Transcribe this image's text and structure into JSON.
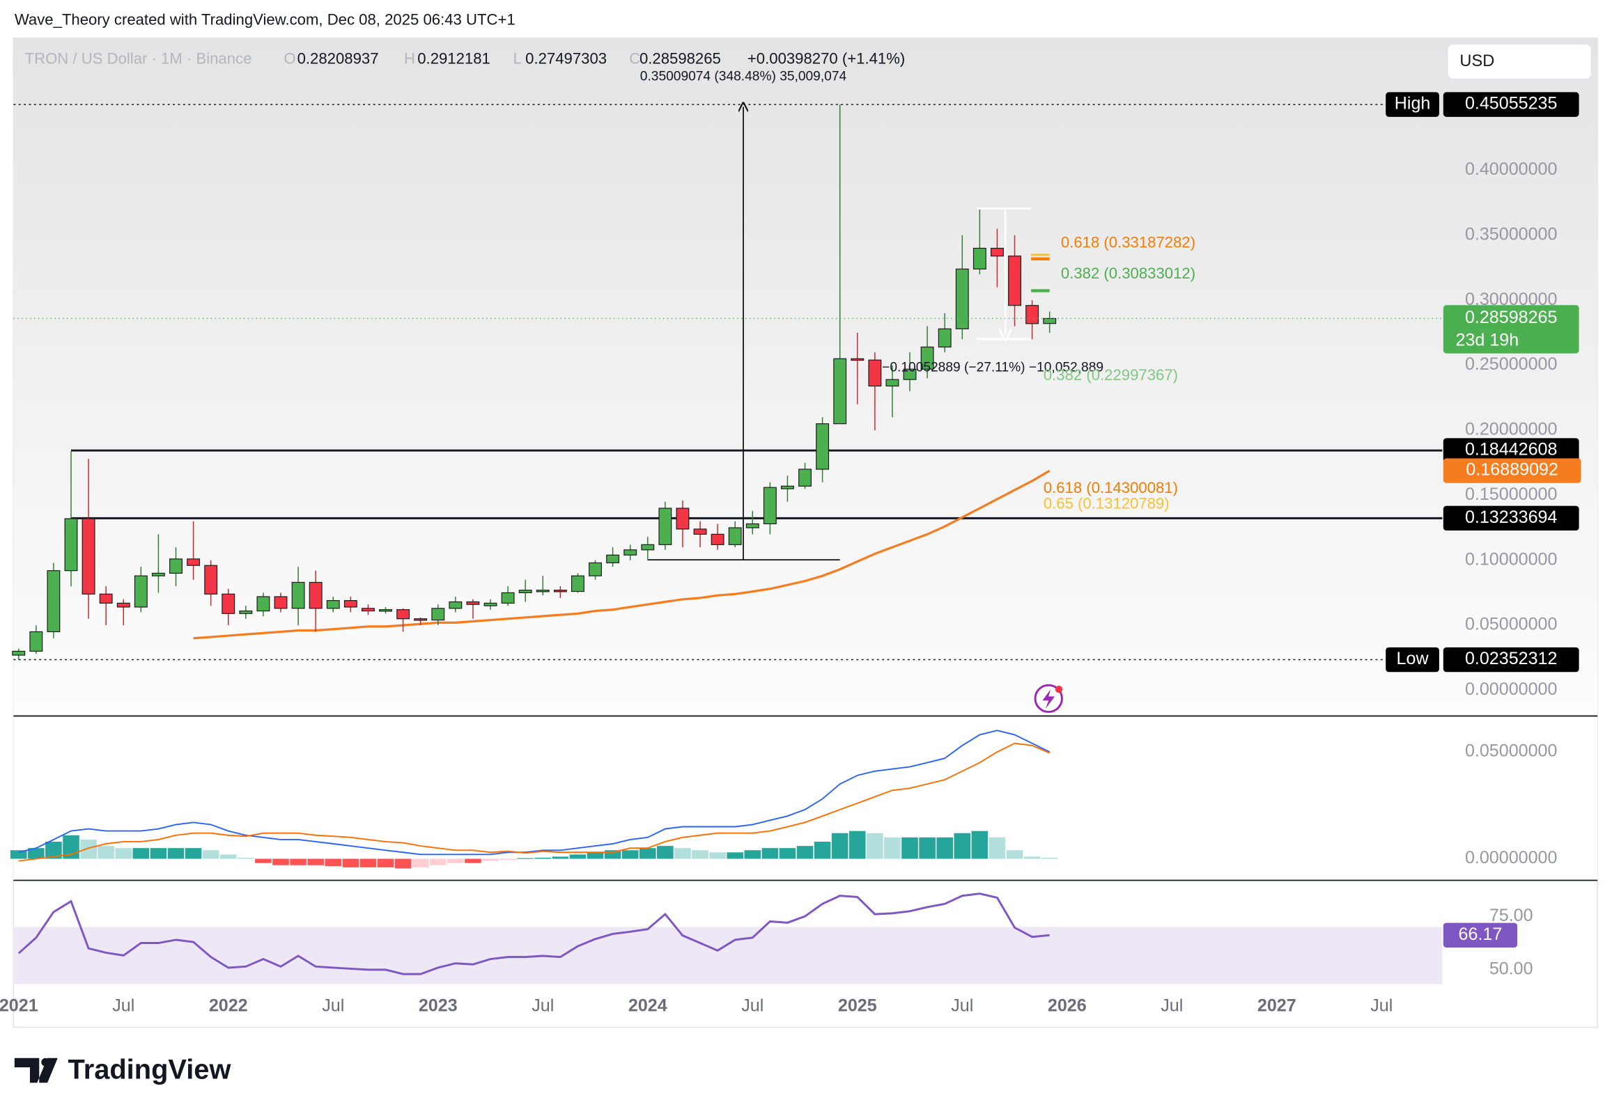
{
  "header": {
    "attribution": "Wave_Theory created with TradingView.com, Dec 08, 2025 06:43 UTC+1",
    "symbol": "TRON / US Dollar · 1M · Binance",
    "ohlc_letters": [
      "O",
      "H",
      "L",
      "C"
    ],
    "change": "+0.00398270 (+1.41%)",
    "currency": "USD",
    "brand": "TradingView"
  },
  "chart_data": [
    {
      "type": "candlestick",
      "x": [
        "2021-01",
        "2021-02",
        "2021-03",
        "2021-04",
        "2021-05",
        "2021-06",
        "2021-07",
        "2021-08",
        "2021-09",
        "2021-10",
        "2021-11",
        "2021-12",
        "2022-01",
        "2022-02",
        "2022-03",
        "2022-04",
        "2022-05",
        "2022-06",
        "2022-07",
        "2022-08",
        "2022-09",
        "2022-10",
        "2022-11",
        "2022-12",
        "2023-01",
        "2023-02",
        "2023-03",
        "2023-04",
        "2023-05",
        "2023-06",
        "2023-07",
        "2023-08",
        "2023-09",
        "2023-10",
        "2023-11",
        "2023-12",
        "2024-01",
        "2024-02",
        "2024-03",
        "2024-04",
        "2024-05",
        "2024-06",
        "2024-07",
        "2024-08",
        "2024-09",
        "2024-10",
        "2024-11",
        "2024-12",
        "2025-01",
        "2025-02",
        "2025-03",
        "2025-04",
        "2025-05",
        "2025-06",
        "2025-07",
        "2025-08",
        "2025-09",
        "2025-10",
        "2025-11",
        "2025-12"
      ],
      "open": [
        0.027,
        0.03,
        0.045,
        0.092,
        0.132,
        0.074,
        0.067,
        0.064,
        0.088,
        0.09,
        0.101,
        0.096,
        0.074,
        0.059,
        0.061,
        0.072,
        0.063,
        0.083,
        0.063,
        0.069,
        0.063,
        0.061,
        0.062,
        0.055,
        0.054,
        0.063,
        0.068,
        0.065,
        0.067,
        0.075,
        0.077,
        0.077,
        0.076,
        0.088,
        0.098,
        0.104,
        0.108,
        0.112,
        0.14,
        0.124,
        0.12,
        0.112,
        0.125,
        0.128,
        0.155,
        0.157,
        0.17,
        0.205,
        0.255,
        0.254,
        0.234,
        0.239,
        0.247,
        0.264,
        0.278,
        0.324,
        0.34,
        0.334,
        0.296,
        0.28208937
      ],
      "high": [
        0.032,
        0.05,
        0.098,
        0.184,
        0.178,
        0.08,
        0.07,
        0.095,
        0.12,
        0.11,
        0.13,
        0.1,
        0.078,
        0.065,
        0.075,
        0.075,
        0.095,
        0.092,
        0.072,
        0.072,
        0.066,
        0.064,
        0.063,
        0.056,
        0.066,
        0.072,
        0.07,
        0.07,
        0.08,
        0.085,
        0.088,
        0.08,
        0.09,
        0.1,
        0.11,
        0.112,
        0.118,
        0.145,
        0.146,
        0.13,
        0.128,
        0.13,
        0.138,
        0.16,
        0.165,
        0.175,
        0.21,
        0.45055235,
        0.275,
        0.26,
        0.25,
        0.26,
        0.28,
        0.29,
        0.35,
        0.37,
        0.355,
        0.35,
        0.3,
        0.2912181
      ],
      "low": [
        0.02352312,
        0.028,
        0.04,
        0.08,
        0.055,
        0.05,
        0.05,
        0.06,
        0.075,
        0.08,
        0.085,
        0.065,
        0.05,
        0.055,
        0.057,
        0.06,
        0.05,
        0.045,
        0.06,
        0.06,
        0.058,
        0.059,
        0.045,
        0.05,
        0.05,
        0.06,
        0.055,
        0.062,
        0.065,
        0.068,
        0.073,
        0.071,
        0.075,
        0.085,
        0.095,
        0.1,
        0.1,
        0.108,
        0.11,
        0.11,
        0.108,
        0.11,
        0.12,
        0.12,
        0.145,
        0.155,
        0.16,
        0.205,
        0.22,
        0.2,
        0.21,
        0.23,
        0.24,
        0.26,
        0.27,
        0.32,
        0.31,
        0.28,
        0.27,
        0.27497303
      ],
      "close": [
        0.03,
        0.045,
        0.092,
        0.132,
        0.074,
        0.067,
        0.064,
        0.088,
        0.09,
        0.101,
        0.096,
        0.074,
        0.059,
        0.061,
        0.072,
        0.063,
        0.083,
        0.063,
        0.069,
        0.064,
        0.061,
        0.062,
        0.055,
        0.054,
        0.063,
        0.068,
        0.066,
        0.067,
        0.075,
        0.077,
        0.077,
        0.076,
        0.088,
        0.098,
        0.104,
        0.108,
        0.112,
        0.14,
        0.124,
        0.12,
        0.112,
        0.125,
        0.128,
        0.156,
        0.157,
        0.17,
        0.205,
        0.255,
        0.254,
        0.234,
        0.239,
        0.247,
        0.264,
        0.278,
        0.324,
        0.34,
        0.334,
        0.296,
        0.282,
        0.28598265
      ],
      "up_color": "#4caf50",
      "down_color": "#f23645",
      "ma": {
        "color": "#f57c1f",
        "values": [
          null,
          null,
          null,
          null,
          null,
          null,
          null,
          null,
          null,
          null,
          0.04,
          0.041,
          0.042,
          0.043,
          0.044,
          0.045,
          0.046,
          0.046,
          0.047,
          0.048,
          0.049,
          0.049,
          0.05,
          0.051,
          0.052,
          0.052,
          0.053,
          0.054,
          0.055,
          0.056,
          0.057,
          0.058,
          0.059,
          0.061,
          0.062,
          0.064,
          0.066,
          0.068,
          0.07,
          0.071,
          0.073,
          0.074,
          0.076,
          0.078,
          0.081,
          0.084,
          0.088,
          0.093,
          0.099,
          0.105,
          0.11,
          0.115,
          0.12,
          0.126,
          0.133,
          0.14,
          0.147,
          0.154,
          0.161,
          0.16889092
        ]
      },
      "levels": [
        {
          "label": "High",
          "value": 0.45055235
        },
        {
          "label": "Low",
          "value": 0.02352312
        },
        {
          "value": 0.18442608,
          "from": "2021-04"
        },
        {
          "value": 0.13233694,
          "from": "2021-04"
        }
      ],
      "countdown": "23d 19h",
      "measure_up": "0.35009074 (348.48%) 35,009,074",
      "measure_down": "−0.10052889 (−27.11%) −10,052,889",
      "fib_labels": [
        {
          "text": "0.618 (0.33187282)",
          "color": "#f57c00"
        },
        {
          "text": "0.382 (0.30833012)",
          "color": "#4caf50"
        },
        {
          "text": "0.382 (0.22997367)",
          "color": "#81c784"
        },
        {
          "text": "0.618 (0.14300081)",
          "color": "#f57c00"
        },
        {
          "text": "0.65 (0.13120789)",
          "color": "#fbc02d"
        }
      ],
      "xlim": [
        "2021-01",
        "2027-10"
      ],
      "xticks": [
        {
          "value": "2021-01",
          "label": "2021"
        },
        {
          "value": "2021-07",
          "label": "Jul"
        },
        {
          "value": "2022-01",
          "label": "2022"
        },
        {
          "value": "2022-07",
          "label": "Jul"
        },
        {
          "value": "2023-01",
          "label": "2023"
        },
        {
          "value": "2023-07",
          "label": "Jul"
        },
        {
          "value": "2024-01",
          "label": "2024"
        },
        {
          "value": "2024-07",
          "label": "Jul"
        },
        {
          "value": "2025-01",
          "label": "2025"
        },
        {
          "value": "2025-07",
          "label": "Jul"
        },
        {
          "value": "2026-01",
          "label": "2026"
        },
        {
          "value": "2026-07",
          "label": "Jul"
        },
        {
          "value": "2027-01",
          "label": "2027"
        },
        {
          "value": "2027-07",
          "label": "Jul"
        }
      ],
      "ylim": [
        -0.0198,
        0.5017
      ],
      "yticks": [
        {
          "value": 0,
          "label": "0.00000000"
        },
        {
          "value": 0.05,
          "label": "0.05000000"
        },
        {
          "value": 0.1,
          "label": "0.10000000"
        },
        {
          "value": 0.15,
          "label": "0.15000000"
        },
        {
          "value": 0.2,
          "label": "0.20000000"
        },
        {
          "value": 0.25,
          "label": "0.25000000"
        },
        {
          "value": 0.3,
          "label": "0.30000000"
        },
        {
          "value": 0.35,
          "label": "0.35000000"
        },
        {
          "value": 0.4,
          "label": "0.40000000"
        }
      ]
    },
    {
      "type": "macd",
      "macd": {
        "color": "#2962ff",
        "values": [
          0.003,
          0.005,
          0.009,
          0.013,
          0.014,
          0.013,
          0.013,
          0.013,
          0.014,
          0.016,
          0.017,
          0.016,
          0.013,
          0.011,
          0.01,
          0.009,
          0.009,
          0.008,
          0.007,
          0.006,
          0.005,
          0.004,
          0.003,
          0.002,
          0.002,
          0.002,
          0.002,
          0.002,
          0.003,
          0.003,
          0.004,
          0.004,
          0.005,
          0.006,
          0.007,
          0.009,
          0.01,
          0.014,
          0.015,
          0.015,
          0.015,
          0.015,
          0.016,
          0.018,
          0.02,
          0.023,
          0.028,
          0.035,
          0.039,
          0.041,
          0.042,
          0.043,
          0.045,
          0.047,
          0.053,
          0.058,
          0.06,
          0.058,
          0.054,
          0.05
        ]
      },
      "signal": {
        "color": "#ff6d00",
        "values": [
          -0.001,
          0,
          0.001,
          0.002,
          0.005,
          0.007,
          0.008,
          0.008,
          0.009,
          0.011,
          0.012,
          0.012,
          0.011,
          0.0105,
          0.012,
          0.012,
          0.012,
          0.011,
          0.0105,
          0.01,
          0.009,
          0.008,
          0.0075,
          0.006,
          0.005,
          0.004,
          0.004,
          0.003,
          0.0035,
          0.0027,
          0.0035,
          0.003,
          0.003,
          0.003,
          0.003,
          0.005,
          0.005,
          0.008,
          0.01,
          0.011,
          0.012,
          0.012,
          0.012,
          0.013,
          0.015,
          0.017,
          0.02,
          0.023,
          0.026,
          0.029,
          0.032,
          0.033,
          0.035,
          0.037,
          0.041,
          0.045,
          0.05,
          0.054,
          0.053,
          0.0495
        ]
      },
      "histogram": {
        "colors": [
          "#26a69a",
          "#b2dfdb",
          "#ff5252",
          "#ffcdd2"
        ],
        "values": [
          0.004,
          0.005,
          0.008,
          0.011,
          0.009,
          0.006,
          0.005,
          0.005,
          0.005,
          0.005,
          0.005,
          0.004,
          0.002,
          0.0005,
          -0.002,
          -0.003,
          -0.003,
          -0.003,
          -0.0035,
          -0.004,
          -0.004,
          -0.004,
          -0.0045,
          -0.004,
          -0.003,
          -0.002,
          -0.002,
          -0.001,
          -0.0005,
          0.0003,
          0.0005,
          0.001,
          0.002,
          0.003,
          0.004,
          0.004,
          0.005,
          0.006,
          0.005,
          0.004,
          0.003,
          0.003,
          0.004,
          0.005,
          0.005,
          0.006,
          0.008,
          0.012,
          0.013,
          0.012,
          0.01,
          0.01,
          0.01,
          0.01,
          0.012,
          0.013,
          0.01,
          0.004,
          0.001,
          0.0005
        ]
      },
      "ylim": [
        -0.0101,
        0.0668
      ],
      "yticks": [
        {
          "value": 0,
          "label": "0.00000000"
        },
        {
          "value": 0.05,
          "label": "0.05000000"
        }
      ]
    },
    {
      "type": "line",
      "color": "#7e57c2",
      "values": [
        57.7,
        65,
        77,
        82,
        60,
        58,
        56.7,
        62.5,
        62.5,
        64,
        63,
        56,
        51,
        51.5,
        55,
        51.5,
        56.5,
        51.5,
        51,
        50.5,
        50,
        50,
        48,
        48,
        51,
        53,
        52.5,
        55,
        56,
        56,
        56.5,
        56,
        61,
        64.4,
        66.8,
        67.8,
        69,
        76,
        66,
        62.5,
        59,
        64,
        65,
        72.6,
        72,
        75,
        80.8,
        84.6,
        84,
        76,
        76.4,
        77.4,
        79.3,
        80.8,
        84.6,
        85.6,
        83.7,
        69.7,
        65.4,
        66.17
      ],
      "band": [
        30,
        70
      ],
      "ylim": [
        43.3,
        91.8
      ],
      "yticks": [
        {
          "value": 50,
          "label": "50.00"
        },
        {
          "value": 75,
          "label": "75.00"
        }
      ]
    }
  ]
}
